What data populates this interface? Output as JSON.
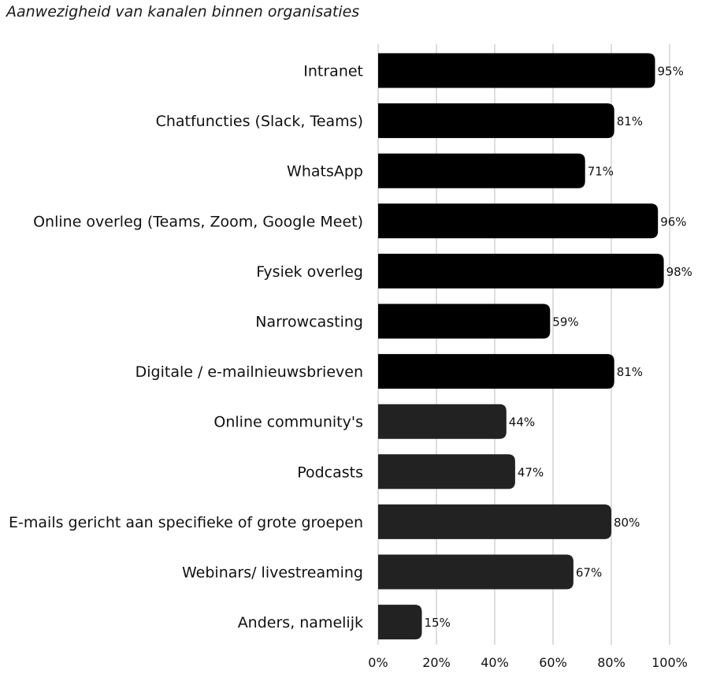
{
  "chart_data": {
    "type": "bar",
    "orientation": "horizontal",
    "title": "Aanwezigheid van kanalen binnen organisaties",
    "categories": [
      "Intranet",
      "Chatfuncties (Slack, Teams)",
      "WhatsApp",
      "Online overleg (Teams, Zoom, Google Meet)",
      "Fysiek overleg",
      "Narrowcasting",
      "Digitale / e-mailnieuwsbrieven",
      "Online community's",
      "Podcasts",
      "E-mails gericht aan specifieke of grote groepen",
      "Webinars/ livestreaming",
      "Anders, namelijk"
    ],
    "values": [
      95,
      81,
      71,
      96,
      98,
      59,
      81,
      44,
      47,
      80,
      67,
      15
    ],
    "value_labels": [
      "95%",
      "81%",
      "71%",
      "96%",
      "98%",
      "59%",
      "81%",
      "44%",
      "47%",
      "80%",
      "67%",
      "15%"
    ],
    "bar_colors": [
      "#000000",
      "#000000",
      "#000000",
      "#000000",
      "#000000",
      "#000000",
      "#000000",
      "#222222",
      "#222222",
      "#222222",
      "#222222",
      "#222222"
    ],
    "xlim": [
      0,
      100
    ],
    "x_ticks": [
      0,
      20,
      40,
      60,
      80,
      100
    ],
    "x_tick_labels": [
      "0%",
      "20%",
      "40%",
      "60%",
      "80%",
      "100%"
    ],
    "grid": true,
    "legend": "none"
  }
}
